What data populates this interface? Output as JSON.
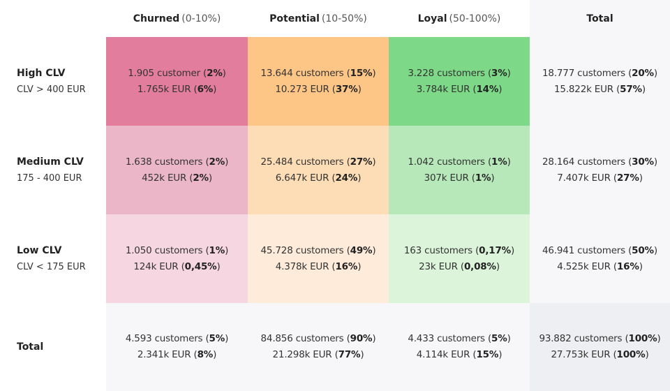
{
  "columns": [
    {
      "name": "Churned",
      "range": "(0-10%)"
    },
    {
      "name": "Potential",
      "range": "(10-50%)"
    },
    {
      "name": "Loyal",
      "range": "(50-100%)"
    },
    {
      "name": "Total",
      "range": ""
    }
  ],
  "rows": [
    {
      "title": "High CLV",
      "subtitle": "CLV > 400 EUR",
      "cells": [
        {
          "count": "1.905 customer",
          "count_pct": "2%",
          "value": "1.765k EUR",
          "value_pct": "6%",
          "bg": "#e27d9e"
        },
        {
          "count": "13.644 customers",
          "count_pct": "15%",
          "value": "10.273 EUR",
          "value_pct": "37%",
          "bg": "#fdc686"
        },
        {
          "count": "3.228 customers",
          "count_pct": "3%",
          "value": "3.784k EUR",
          "value_pct": "14%",
          "bg": "#7dd987"
        },
        {
          "count": "18.777 customers",
          "count_pct": "20%",
          "value": "15.822k EUR",
          "value_pct": "57%",
          "bg": "#f7f7f9"
        }
      ]
    },
    {
      "title": "Medium CLV",
      "subtitle": "175 - 400 EUR",
      "cells": [
        {
          "count": "1.638 customers",
          "count_pct": "2%",
          "value": "452k EUR",
          "value_pct": "2%",
          "bg": "#ecb6c9"
        },
        {
          "count": "25.484 customers",
          "count_pct": "27%",
          "value": "6.647k EUR",
          "value_pct": "24%",
          "bg": "#fdddb6"
        },
        {
          "count": "1.042 customers",
          "count_pct": "1%",
          "value": "307k EUR",
          "value_pct": "1%",
          "bg": "#b6e8b9"
        },
        {
          "count": "28.164 customers",
          "count_pct": "30%",
          "value": "7.407k EUR",
          "value_pct": "27%",
          "bg": "#f7f7f9"
        }
      ]
    },
    {
      "title": "Low CLV",
      "subtitle": "CLV < 175 EUR",
      "cells": [
        {
          "count": "1.050 customers",
          "count_pct": "1%",
          "value": "124k EUR",
          "value_pct": "0,45%",
          "bg": "#f6d6e1"
        },
        {
          "count": "45.728 customers",
          "count_pct": "49%",
          "value": "4.378k EUR",
          "value_pct": "16%",
          "bg": "#feebda"
        },
        {
          "count": "163 customers",
          "count_pct": "0,17%",
          "value": "23k EUR",
          "value_pct": "0,08%",
          "bg": "#dbf4da"
        },
        {
          "count": "46.941 customers",
          "count_pct": "50%",
          "value": "4.525k EUR",
          "value_pct": "16%",
          "bg": "#f7f7f9"
        }
      ]
    },
    {
      "title": "Total",
      "subtitle": "",
      "cells": [
        {
          "count": "4.593 customers",
          "count_pct": "5%",
          "value": "2.341k EUR",
          "value_pct": "8%",
          "bg": "#f7f7f9"
        },
        {
          "count": "84.856 customers",
          "count_pct": "90%",
          "value": "21.298k EUR",
          "value_pct": "77%",
          "bg": "#f7f7f9"
        },
        {
          "count": "4.433 customers",
          "count_pct": "5%",
          "value": "4.114k EUR",
          "value_pct": "15%",
          "bg": "#f7f7f9"
        },
        {
          "count": "93.882 customers",
          "count_pct": "100%",
          "value": "27.753k EUR",
          "value_pct": "100%",
          "bg": "#eeeff2"
        }
      ]
    }
  ]
}
